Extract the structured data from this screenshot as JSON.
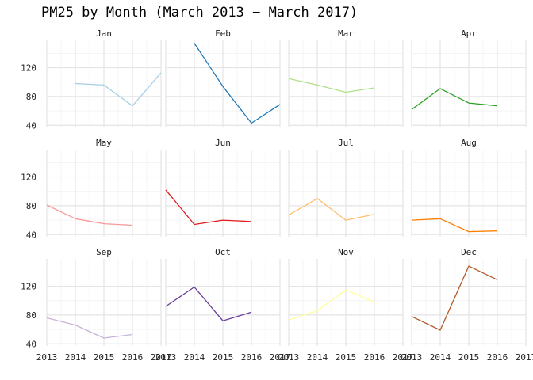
{
  "chart_data": {
    "type": "line",
    "title": "PM25 by Month (March 2013 − March 2017)",
    "xlabel": "",
    "ylabel": "",
    "x_ticks": [
      "2013",
      "2014",
      "2015",
      "2016",
      "2017"
    ],
    "y_ticks": [
      "40",
      "80",
      "120"
    ],
    "xlim": [
      2013,
      2017
    ],
    "ylim": [
      37,
      158
    ],
    "grid": true,
    "facets": [
      {
        "name": "Jan",
        "color": "#a6cee3",
        "x": [
          2014,
          2015,
          2016,
          2017
        ],
        "y": [
          98,
          96,
          67,
          113
        ]
      },
      {
        "name": "Feb",
        "color": "#1f78b4",
        "x": [
          2014,
          2015,
          2016,
          2017
        ],
        "y": [
          154,
          94,
          43,
          69
        ]
      },
      {
        "name": "Mar",
        "color": "#b2df8a",
        "x": [
          2013,
          2014,
          2015,
          2016
        ],
        "y": [
          105,
          96,
          86,
          92
        ]
      },
      {
        "name": "Apr",
        "color": "#33a02c",
        "x": [
          2013,
          2014,
          2015,
          2016
        ],
        "y": [
          62,
          91,
          71,
          67
        ]
      },
      {
        "name": "May",
        "color": "#fb9a99",
        "x": [
          2013,
          2014,
          2015,
          2016
        ],
        "y": [
          81,
          62,
          55,
          53
        ]
      },
      {
        "name": "Jun",
        "color": "#e31a1c",
        "x": [
          2013,
          2014,
          2015,
          2016
        ],
        "y": [
          102,
          54,
          60,
          58
        ]
      },
      {
        "name": "Jul",
        "color": "#fdbf6f",
        "x": [
          2013,
          2014,
          2015,
          2016
        ],
        "y": [
          67,
          90,
          60,
          68
        ]
      },
      {
        "name": "Aug",
        "color": "#ff7f00",
        "x": [
          2013,
          2014,
          2015,
          2016
        ],
        "y": [
          60,
          62,
          44,
          45
        ]
      },
      {
        "name": "Sep",
        "color": "#cab2d6",
        "x": [
          2013,
          2014,
          2015,
          2016
        ],
        "y": [
          76,
          66,
          48,
          53
        ]
      },
      {
        "name": "Oct",
        "color": "#6a3d9a",
        "x": [
          2013,
          2014,
          2015,
          2016
        ],
        "y": [
          92,
          119,
          72,
          84
        ]
      },
      {
        "name": "Nov",
        "color": "#ffff99",
        "x": [
          2013,
          2014,
          2015,
          2016
        ],
        "y": [
          73,
          86,
          115,
          98
        ]
      },
      {
        "name": "Dec",
        "color": "#b15928",
        "x": [
          2013,
          2014,
          2015,
          2016
        ],
        "y": [
          78,
          59,
          148,
          129
        ]
      }
    ]
  }
}
